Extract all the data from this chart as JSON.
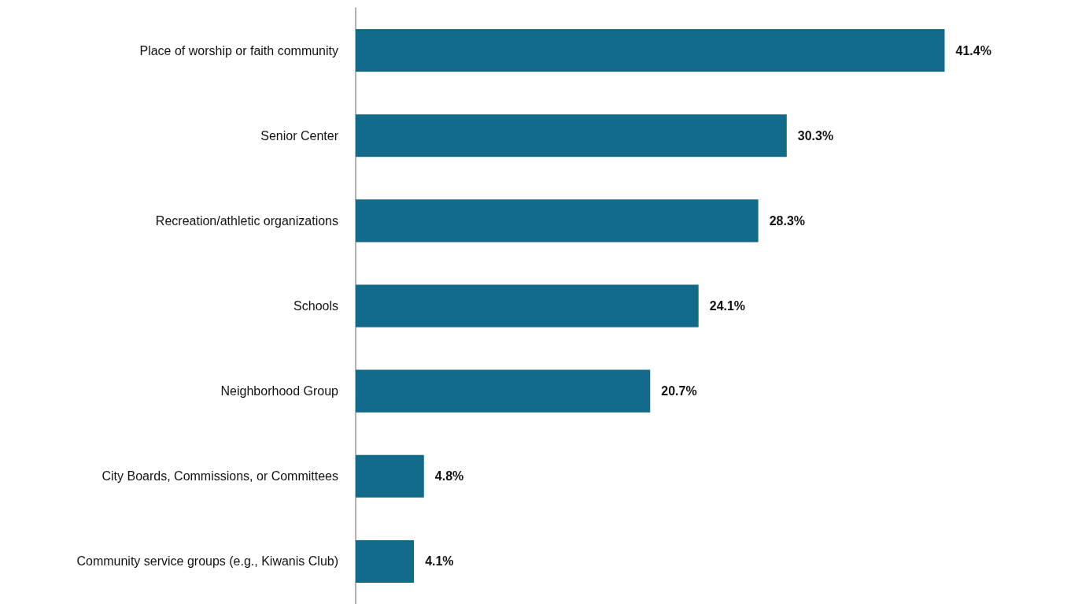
{
  "chart_data": {
    "type": "bar",
    "orientation": "horizontal",
    "categories": [
      "Place of worship or faith community",
      "Senior Center",
      "Recreation/athletic organizations",
      "Schools",
      "Neighborhood Group",
      "City Boards, Commissions, or Committees",
      "Community service groups (e.g., Kiwanis Club)"
    ],
    "values": [
      41.4,
      30.3,
      28.3,
      24.1,
      20.7,
      4.8,
      4.1
    ],
    "value_labels": [
      "41.4%",
      "30.3%",
      "28.3%",
      "24.1%",
      "20.7%",
      "4.8%",
      "4.1%"
    ],
    "color": "#136b8c",
    "tick_labels": "y"
  }
}
